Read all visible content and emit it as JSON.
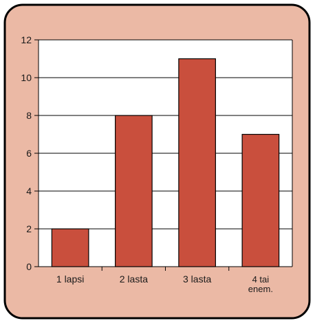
{
  "colors": {
    "panel_background": "#ebb9a5",
    "panel_border": "#000000",
    "plot_background": "#ffffff",
    "bar_fill": "#c94f3d",
    "bar_stroke": "#000000",
    "gridline": "#000000"
  },
  "chart_data": {
    "type": "bar",
    "title": "",
    "xlabel": "",
    "ylabel": "",
    "categories": [
      [
        "1 lapsi"
      ],
      [
        "2 lasta"
      ],
      [
        "3 lasta"
      ],
      [
        "4 tai",
        "enem."
      ]
    ],
    "values": [
      2,
      8,
      11,
      7
    ],
    "ylim": [
      0,
      12
    ],
    "yticks": [
      "0",
      "2",
      "4",
      "6",
      "8",
      "10",
      "12"
    ],
    "grid": true,
    "legend": "none"
  }
}
